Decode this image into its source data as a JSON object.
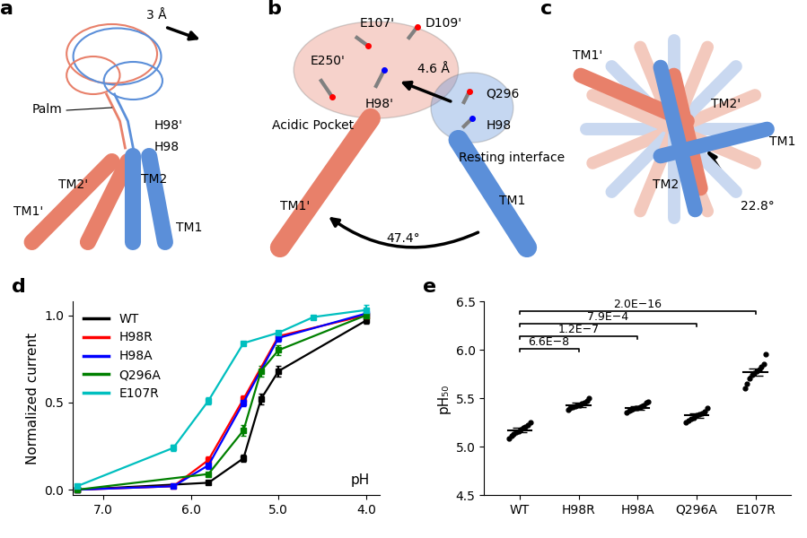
{
  "chart_data": [
    {
      "panel": "d",
      "type": "line",
      "ylabel": "Normalized current",
      "xlabel": "pH",
      "xlim": [
        7.35,
        3.85
      ],
      "xticks": [
        {
          "value": 7,
          "label": "7.0"
        },
        {
          "value": 6,
          "label": "6.0"
        },
        {
          "value": 5,
          "label": "5.0"
        },
        {
          "value": 4,
          "label": "4.0"
        }
      ],
      "ylim": [
        -0.03,
        1.08
      ],
      "yticks": [
        {
          "value": 0,
          "label": "0.0"
        },
        {
          "value": 0.5,
          "label": "0.5"
        },
        {
          "value": 1,
          "label": "1.0"
        }
      ],
      "legend": "upper left",
      "marker": "square",
      "series": [
        {
          "name": "WT",
          "color": "#000000",
          "x": [
            7.3,
            5.8,
            5.4,
            5.2,
            5.0,
            4.0
          ],
          "values": [
            0.0,
            0.04,
            0.18,
            0.52,
            0.68,
            0.97
          ],
          "errors": [
            0.01,
            0.01,
            0.02,
            0.03,
            0.03,
            0.02
          ]
        },
        {
          "name": "H98R",
          "color": "#ff0000",
          "x": [
            7.3,
            6.2,
            5.8,
            5.4,
            5.0,
            4.0
          ],
          "values": [
            0.0,
            0.02,
            0.17,
            0.52,
            0.88,
            1.0
          ],
          "errors": [
            0.01,
            0.01,
            0.02,
            0.02,
            0.02,
            0.01
          ]
        },
        {
          "name": "H98A",
          "color": "#0000ff",
          "x": [
            7.3,
            6.2,
            5.8,
            5.4,
            5.0,
            4.0
          ],
          "values": [
            0.0,
            0.02,
            0.14,
            0.5,
            0.87,
            1.01
          ],
          "errors": [
            0.01,
            0.01,
            0.02,
            0.02,
            0.02,
            0.01
          ]
        },
        {
          "name": "Q296A",
          "color": "#008000",
          "x": [
            7.3,
            5.8,
            5.4,
            5.2,
            5.0,
            4.0
          ],
          "values": [
            0.0,
            0.09,
            0.34,
            0.68,
            0.8,
            1.0
          ],
          "errors": [
            0.01,
            0.01,
            0.03,
            0.03,
            0.03,
            0.02
          ]
        },
        {
          "name": "E107R",
          "color": "#00bfbf",
          "x": [
            7.3,
            6.2,
            5.8,
            5.4,
            5.0,
            4.6,
            4.0
          ],
          "values": [
            0.02,
            0.24,
            0.51,
            0.84,
            0.9,
            0.99,
            1.03
          ],
          "errors": [
            0.01,
            0.02,
            0.02,
            0.01,
            0.01,
            0.01,
            0.03
          ]
        }
      ]
    },
    {
      "panel": "e",
      "type": "scatter",
      "ylabel": "pH₅₀",
      "categories": [
        "WT",
        "H98R",
        "H98A",
        "Q296A",
        "E107R"
      ],
      "color": "#000000",
      "values": [
        [
          5.08,
          5.11,
          5.13,
          5.15,
          5.16,
          5.18,
          5.19,
          5.2,
          5.22,
          5.25
        ],
        [
          5.38,
          5.4,
          5.41,
          5.42,
          5.43,
          5.43,
          5.44,
          5.45,
          5.47,
          5.5
        ],
        [
          5.35,
          5.37,
          5.38,
          5.39,
          5.4,
          5.4,
          5.41,
          5.42,
          5.43,
          5.45,
          5.46
        ],
        [
          5.25,
          5.27,
          5.29,
          5.3,
          5.32,
          5.33,
          5.34,
          5.36,
          5.4
        ],
        [
          5.6,
          5.65,
          5.7,
          5.74,
          5.76,
          5.78,
          5.8,
          5.82,
          5.85,
          5.95
        ]
      ],
      "means": [
        5.17,
        5.43,
        5.4,
        5.32,
        5.77
      ],
      "errors": [
        0.02,
        0.02,
        0.02,
        0.02,
        0.04
      ],
      "ylim": [
        4.5,
        6.5
      ],
      "yticks": [
        {
          "value": 4.5,
          "label": "4.5"
        },
        {
          "value": 5,
          "label": "5.0"
        },
        {
          "value": 5.5,
          "label": "5.5"
        },
        {
          "value": 6,
          "label": "6.0"
        },
        {
          "value": 6.5,
          "label": "6.5"
        }
      ],
      "comparisons": [
        {
          "categories": [
            "WT",
            "H98R"
          ],
          "label": "6.6E−8"
        },
        {
          "categories": [
            "WT",
            "H98A"
          ],
          "label": "1.2E−7"
        },
        {
          "categories": [
            "WT",
            "Q296A"
          ],
          "label": "7.9E−4"
        },
        {
          "categories": [
            "WT",
            "E107R"
          ],
          "label": "2.0E−16"
        }
      ]
    }
  ],
  "diagrams": [
    {
      "panel": "a",
      "labels": {
        "shift": "3 Å",
        "palm": "Palm",
        "h98p": "H98'",
        "h98": "H98",
        "tm1p": "TM1'",
        "tm2p": "TM2'",
        "tm2": "TM2",
        "tm1": "TM1"
      }
    },
    {
      "panel": "b",
      "labels": {
        "e107p": "E107'",
        "d109p": "D109'",
        "e250p": "E250'",
        "h98p": "H98'",
        "dist": "4.6 Å",
        "q296": "Q296",
        "h98": "H98",
        "pocket": "Acidic Pocket",
        "resting": "Resting interface",
        "tm1p": "TM1'",
        "tm1": "TM1",
        "angle": "47.4°"
      }
    },
    {
      "panel": "c",
      "labels": {
        "tm1p": "TM1'",
        "tm2p": "TM2'",
        "tm1": "TM1",
        "tm2": "TM2",
        "angle": "22.8°"
      }
    }
  ]
}
